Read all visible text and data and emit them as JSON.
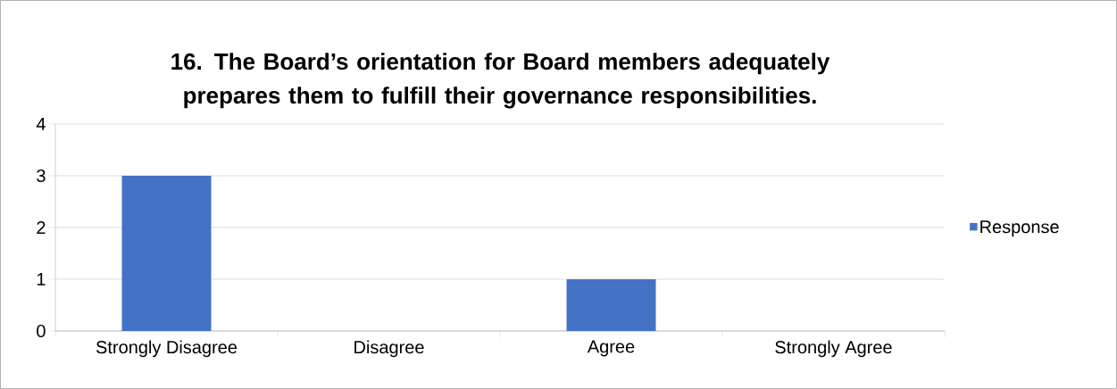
{
  "chart_data": {
    "type": "bar",
    "title": "16. The Board’s orientation for Board members adequately prepares them to fulfill their governance responsibilities.",
    "categories": [
      "Strongly Disagree",
      "Disagree",
      "Agree",
      "Strongly Agree"
    ],
    "series": [
      {
        "name": "Response",
        "color": "#4472c4",
        "values": [
          3,
          0,
          1,
          0
        ]
      }
    ],
    "ylim": [
      0,
      4
    ],
    "yticks": [
      0,
      1,
      2,
      3,
      4
    ],
    "grid": "y",
    "legend": "right"
  }
}
